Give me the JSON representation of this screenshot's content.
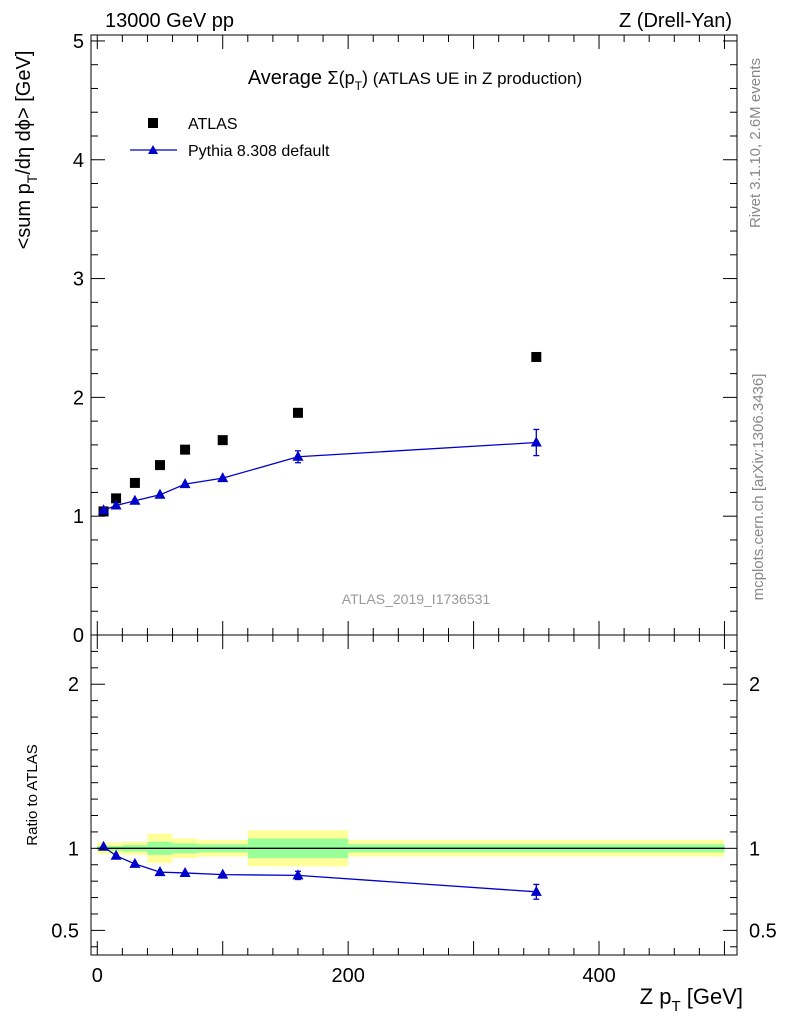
{
  "header": {
    "left": "13000 GeV pp",
    "right": "Z (Drell-Yan)"
  },
  "side_labels": {
    "rivet": "Rivet 3.1.10,  2.6M events",
    "mcplots": "mcplots.cern.ch [arXiv:1306.3436]"
  },
  "analysis_id": "ATLAS_2019_I1736531",
  "colors": {
    "data": "#000000",
    "mc": "#0000cc",
    "band_inner": "#99ff99",
    "band_outer": "#ffff99"
  },
  "chart_data": [
    {
      "type": "scatter",
      "title": "Average Σ(pT) (ATLAS UE in Z production)",
      "title_parts": {
        "prefix": "Average ",
        "sigma": "Σ(p",
        "sub": "T",
        "close": ")",
        "rest": " (ATLAS UE in Z production)"
      },
      "ylabel": "<sum pT/dη dϕ> [GeV]",
      "ylabel_parts": {
        "pre": "<sum p",
        "sub": "T",
        "post": "/dη dϕ> [GeV]"
      },
      "xlim": [
        -5,
        510
      ],
      "ylim": [
        0,
        5.05
      ],
      "y_ticks": [
        0,
        1,
        2,
        3,
        4,
        5
      ],
      "y_tick_labels": [
        "0",
        "1",
        "2",
        "3",
        "4",
        "5"
      ],
      "legend": {
        "position": "top-left",
        "entries": [
          "ATLAS",
          "Pythia 8.308 default"
        ]
      },
      "series": [
        {
          "name": "ATLAS",
          "marker": "square",
          "x": [
            5,
            15,
            30,
            50,
            70,
            100,
            160,
            350
          ],
          "y": [
            1.04,
            1.15,
            1.28,
            1.43,
            1.56,
            1.64,
            1.87,
            2.34
          ]
        },
        {
          "name": "Pythia 8.308 default",
          "marker": "triangle",
          "x": [
            5,
            15,
            30,
            50,
            70,
            100,
            160,
            350
          ],
          "y": [
            1.05,
            1.09,
            1.13,
            1.18,
            1.27,
            1.32,
            1.5,
            1.62
          ],
          "yerr": [
            0.01,
            0.01,
            0.01,
            0.01,
            0.02,
            0.02,
            0.05,
            0.11
          ]
        }
      ]
    },
    {
      "type": "scatter",
      "ylabel": "Ratio to ATLAS",
      "xlabel": "Z pT [GeV]",
      "xlabel_parts": {
        "pre": "Z p",
        "sub": "T",
        "post": " [GeV]"
      },
      "xlim": [
        -5,
        510
      ],
      "ylim": [
        0.35,
        2.3
      ],
      "x_ticks": [
        0,
        200,
        400
      ],
      "x_tick_labels": [
        "0",
        "200",
        "400"
      ],
      "y_ticks": [
        0.5,
        1,
        2
      ],
      "y_tick_labels": [
        "0.5",
        "1",
        "2"
      ],
      "reference_line": 1,
      "uncertainty_bands": [
        {
          "x_lo": 0,
          "x_hi": 10,
          "inner": 0.015,
          "outer": 0.035
        },
        {
          "x_lo": 10,
          "x_hi": 20,
          "inner": 0.015,
          "outer": 0.035
        },
        {
          "x_lo": 20,
          "x_hi": 40,
          "inner": 0.02,
          "outer": 0.04
        },
        {
          "x_lo": 40,
          "x_hi": 60,
          "inner": 0.04,
          "outer": 0.09
        },
        {
          "x_lo": 60,
          "x_hi": 80,
          "inner": 0.03,
          "outer": 0.06
        },
        {
          "x_lo": 80,
          "x_hi": 120,
          "inner": 0.025,
          "outer": 0.05
        },
        {
          "x_lo": 120,
          "x_hi": 200,
          "inner": 0.06,
          "outer": 0.11
        },
        {
          "x_lo": 200,
          "x_hi": 500,
          "inner": 0.025,
          "outer": 0.05
        }
      ],
      "series": [
        {
          "name": "Pythia 8.308 default",
          "marker": "triangle",
          "x": [
            5,
            15,
            30,
            50,
            70,
            100,
            160,
            350
          ],
          "y": [
            1.01,
            0.955,
            0.905,
            0.855,
            0.85,
            0.84,
            0.835,
            0.735
          ],
          "yerr": [
            0.01,
            0.01,
            0.01,
            0.01,
            0.01,
            0.01,
            0.025,
            0.045
          ]
        }
      ]
    }
  ]
}
